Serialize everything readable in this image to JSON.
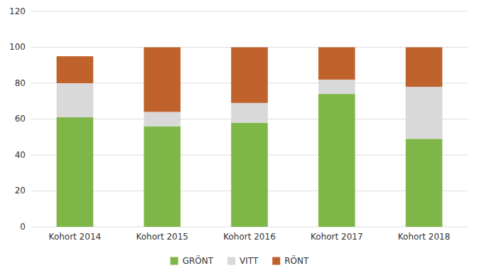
{
  "chart_data": {
    "type": "bar",
    "stacked": true,
    "categories": [
      "Kohort 2014",
      "Kohort 2015",
      "Kohort 2016",
      "Kohort 2017",
      "Kohort 2018"
    ],
    "series": [
      {
        "name": "GRÖNT",
        "color": "#7EB648",
        "values": [
          61,
          56,
          58,
          74,
          49
        ]
      },
      {
        "name": "VITT",
        "color": "#D9D9D9",
        "values": [
          19,
          8,
          11,
          8,
          29
        ]
      },
      {
        "name": "RÖNT",
        "color": "#C0622B",
        "values": [
          15,
          36,
          31,
          18,
          22
        ]
      }
    ],
    "ylim": [
      0,
      120
    ],
    "yticks": [
      0,
      20,
      40,
      60,
      80,
      100,
      120
    ],
    "grid": true,
    "legend": "bottom"
  }
}
